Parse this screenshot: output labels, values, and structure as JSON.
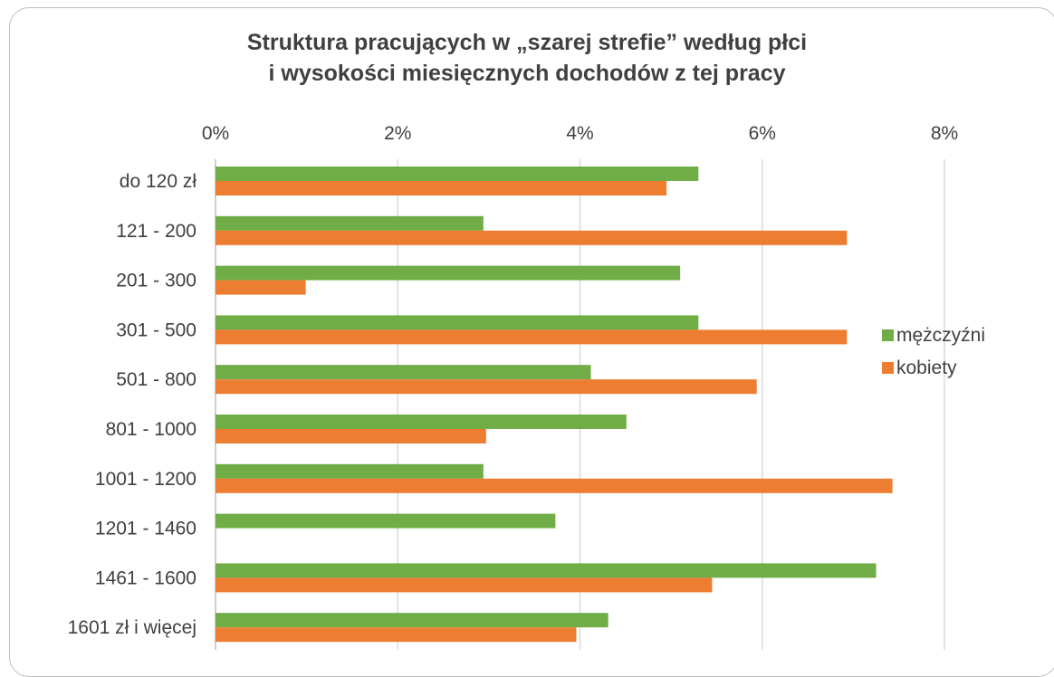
{
  "chart_data": {
    "type": "bar",
    "orientation": "horizontal",
    "title": [
      "Struktura pracujących w „szarej strefie” według płci",
      "i wysokości miesięcznych dochodów z tej pracy"
    ],
    "categories": [
      "do 120 zł",
      "121 - 200",
      "201 - 300",
      "301 - 500",
      "501 - 800",
      "801 - 1000",
      "1001 - 1200",
      "1201 - 1460",
      "1461 - 1600",
      "1601 zł i więcej"
    ],
    "series": [
      {
        "name": "mężczyźni",
        "color": "#70ad47",
        "values": [
          5.3,
          2.94,
          5.1,
          5.3,
          4.12,
          4.51,
          2.94,
          3.73,
          7.25,
          4.31
        ]
      },
      {
        "name": "kobiety",
        "color": "#ed7d31",
        "values": [
          4.95,
          6.93,
          0.99,
          6.93,
          5.94,
          2.97,
          7.43,
          0,
          5.45,
          3.96
        ]
      }
    ],
    "xlim": [
      0,
      8
    ],
    "xticks": [
      "0%",
      "2%",
      "4%",
      "6%",
      "8%"
    ],
    "xtick_values": [
      0,
      2,
      4,
      6,
      8
    ],
    "grid": true,
    "legend_position": "right",
    "gridline_color": "#d9d9d9"
  }
}
